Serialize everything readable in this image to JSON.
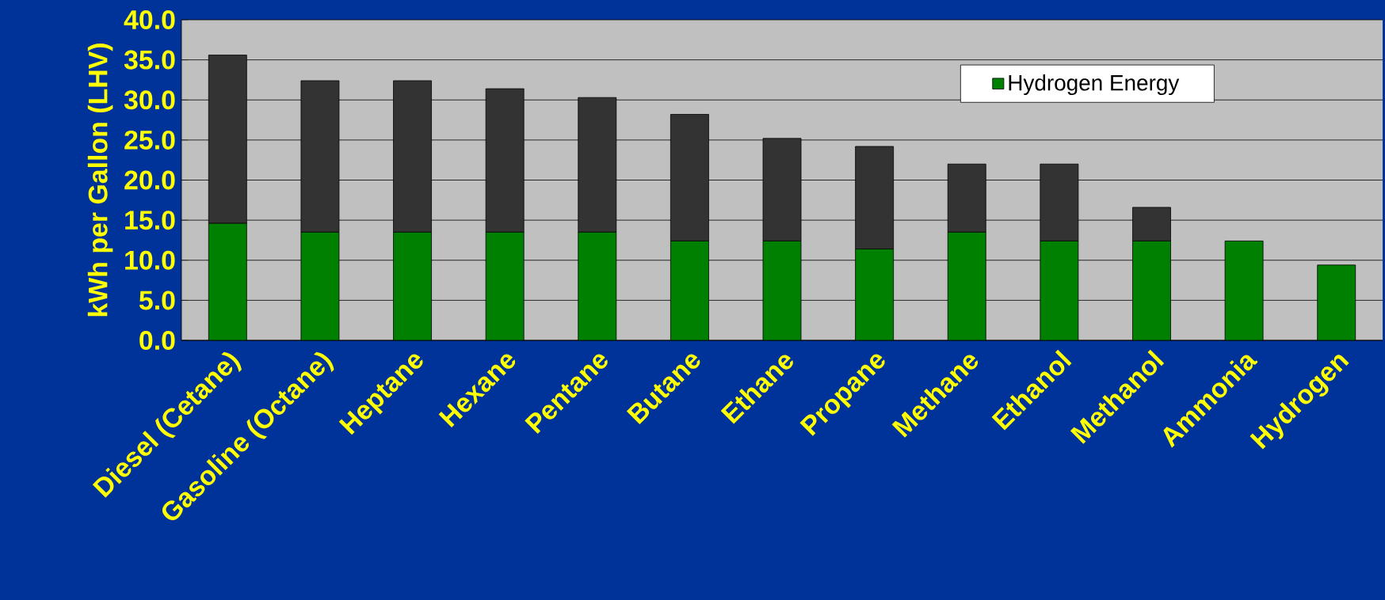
{
  "chart_data": {
    "type": "bar",
    "stacked": true,
    "ylabel": "kWh per Gallon (LHV)",
    "categories": [
      "Diesel (Cetane)",
      "Gasoline (Octane)",
      "Heptane",
      "Hexane",
      "Pentane",
      "Butane",
      "Ethane",
      "Propane",
      "Methane",
      "Ethanol",
      "Methanol",
      "Ammonia",
      "Hydrogen"
    ],
    "series": [
      {
        "name": "Hydrogen Energy",
        "color": "#008000",
        "values": [
          14.6,
          13.5,
          13.5,
          13.5,
          13.5,
          12.4,
          12.4,
          11.4,
          13.5,
          12.4,
          12.4,
          12.4,
          9.4
        ]
      },
      {
        "color": "#333333",
        "values": [
          21.0,
          18.9,
          18.9,
          17.9,
          16.8,
          15.8,
          12.8,
          12.8,
          8.5,
          9.6,
          4.2,
          null,
          null
        ]
      }
    ],
    "ylim": [
      0,
      40
    ],
    "yticks": [
      {
        "value": 0,
        "label": "0.0"
      },
      {
        "value": 5,
        "label": "5.0"
      },
      {
        "value": 10,
        "label": "10.0"
      },
      {
        "value": 15,
        "label": "15.0"
      },
      {
        "value": 20,
        "label": "20.0"
      },
      {
        "value": 25,
        "label": "25.0"
      },
      {
        "value": 30,
        "label": "30.0"
      },
      {
        "value": 35,
        "label": "35.0"
      },
      {
        "value": 40,
        "label": "40.0"
      }
    ],
    "grid": "y",
    "legend": "top right"
  }
}
